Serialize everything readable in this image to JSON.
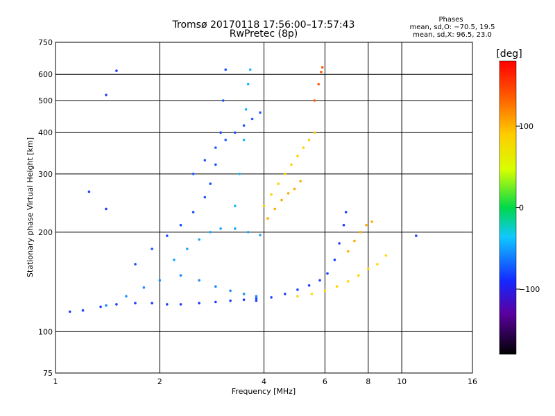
{
  "title": {
    "line1": "Tromsø 20170118 17:56:00–17:57:43",
    "line2": "RwPretec (8p)"
  },
  "stats": {
    "heading": "Phases",
    "line_o": "mean, sd,O: −70.5, 19.5",
    "line_x": "mean, sd,X:  96.5, 23.0"
  },
  "chart_data": {
    "type": "scatter",
    "title": "Tromsø 20170118 17:56:00–17:57:43",
    "subtitle": "RwPretec (8p)",
    "xlabel": "Frequency [MHz]",
    "ylabel": "Stationary phase Virtual Height [km]",
    "xscale": "log",
    "yscale": "log",
    "xlim": [
      1,
      16
    ],
    "ylim": [
      75,
      750
    ],
    "x_ticks": [
      1,
      2,
      4,
      6,
      8,
      10,
      16
    ],
    "x_tick_labels": [
      "1",
      "2",
      "4",
      "6",
      "8",
      "10",
      "16"
    ],
    "y_ticks": [
      75,
      100,
      200,
      300,
      400,
      500,
      600,
      750
    ],
    "y_tick_labels": [
      "75",
      "100",
      "200",
      "300",
      "400",
      "500",
      "600",
      "750"
    ],
    "grid": true,
    "colorbar": {
      "label": "[deg]",
      "range": [
        -180,
        180
      ],
      "ticks": [
        100,
        0,
        -100
      ],
      "tick_labels": [
        "100",
        "0",
        "−100"
      ],
      "colormap": "rainbow"
    },
    "series": [
      {
        "phase_deg": -100,
        "color": "#1b3fff",
        "points": [
          [
            1.1,
            115
          ],
          [
            1.2,
            116
          ],
          [
            1.35,
            119
          ],
          [
            1.5,
            121
          ],
          [
            1.7,
            122
          ],
          [
            1.9,
            122
          ],
          [
            2.1,
            121
          ],
          [
            2.3,
            121
          ],
          [
            2.6,
            122
          ],
          [
            2.9,
            123
          ],
          [
            3.2,
            124
          ],
          [
            3.5,
            125
          ],
          [
            3.8,
            126
          ]
        ]
      },
      {
        "phase_deg": -70,
        "color": "#1a8cff",
        "points": [
          [
            1.4,
            120
          ],
          [
            1.6,
            128
          ],
          [
            1.8,
            136
          ],
          [
            2.0,
            143
          ],
          [
            2.3,
            148
          ],
          [
            2.6,
            143
          ],
          [
            2.9,
            137
          ],
          [
            3.2,
            133
          ],
          [
            3.5,
            130
          ],
          [
            3.8,
            128
          ]
        ]
      },
      {
        "phase_deg": -90,
        "color": "#1750ff",
        "points": [
          [
            1.7,
            160
          ],
          [
            1.9,
            178
          ],
          [
            2.1,
            195
          ],
          [
            2.3,
            210
          ],
          [
            2.5,
            230
          ],
          [
            2.7,
            255
          ],
          [
            2.8,
            280
          ],
          [
            2.9,
            320
          ],
          [
            3.0,
            400
          ],
          [
            3.05,
            500
          ],
          [
            3.1,
            620
          ]
        ]
      },
      {
        "phase_deg": -60,
        "color": "#19a6ff",
        "points": [
          [
            2.2,
            165
          ],
          [
            2.4,
            178
          ],
          [
            2.6,
            190
          ],
          [
            2.8,
            200
          ],
          [
            3.0,
            205
          ],
          [
            3.3,
            205
          ],
          [
            3.6,
            200
          ],
          [
            3.9,
            196
          ]
        ]
      },
      {
        "phase_deg": -85,
        "color": "#1d5aff",
        "points": [
          [
            2.5,
            300
          ],
          [
            2.7,
            330
          ],
          [
            2.9,
            360
          ],
          [
            3.1,
            380
          ],
          [
            3.3,
            400
          ],
          [
            3.5,
            420
          ],
          [
            3.7,
            440
          ],
          [
            3.9,
            460
          ]
        ]
      },
      {
        "phase_deg": -65,
        "color": "#18b4ff",
        "points": [
          [
            3.3,
            240
          ],
          [
            3.4,
            300
          ],
          [
            3.5,
            380
          ],
          [
            3.55,
            470
          ],
          [
            3.6,
            560
          ],
          [
            3.65,
            620
          ]
        ]
      },
      {
        "phase_deg": 110,
        "color": "#ffd200",
        "points": [
          [
            4.0,
            240
          ],
          [
            4.2,
            260
          ],
          [
            4.4,
            280
          ],
          [
            4.6,
            300
          ],
          [
            4.8,
            320
          ],
          [
            5.0,
            340
          ],
          [
            5.2,
            360
          ],
          [
            5.4,
            380
          ],
          [
            5.6,
            400
          ]
        ]
      },
      {
        "phase_deg": 130,
        "color": "#ffaa00",
        "points": [
          [
            4.1,
            220
          ],
          [
            4.3,
            235
          ],
          [
            4.5,
            250
          ],
          [
            4.7,
            262
          ],
          [
            4.9,
            270
          ],
          [
            5.1,
            285
          ]
        ]
      },
      {
        "phase_deg": 150,
        "color": "#ff5a00",
        "points": [
          [
            5.6,
            500
          ],
          [
            5.75,
            560
          ],
          [
            5.85,
            610
          ],
          [
            5.9,
            630
          ]
        ]
      },
      {
        "phase_deg": -95,
        "color": "#1f40ff",
        "points": [
          [
            3.8,
            124
          ],
          [
            4.2,
            127
          ],
          [
            4.6,
            130
          ],
          [
            5.0,
            134
          ],
          [
            5.4,
            138
          ],
          [
            5.8,
            143
          ],
          [
            6.1,
            150
          ],
          [
            6.4,
            165
          ],
          [
            6.6,
            185
          ],
          [
            6.8,
            210
          ],
          [
            6.9,
            230
          ]
        ]
      },
      {
        "phase_deg": 105,
        "color": "#ffd800",
        "points": [
          [
            5.0,
            128
          ],
          [
            5.5,
            130
          ],
          [
            6.0,
            133
          ],
          [
            6.5,
            137
          ],
          [
            7.0,
            142
          ],
          [
            7.5,
            148
          ],
          [
            8.0,
            155
          ],
          [
            8.5,
            160
          ],
          [
            9.0,
            170
          ]
        ]
      },
      {
        "phase_deg": 125,
        "color": "#ffae00",
        "points": [
          [
            7.0,
            175
          ],
          [
            7.3,
            188
          ],
          [
            7.6,
            200
          ],
          [
            7.9,
            210
          ],
          [
            8.2,
            215
          ]
        ]
      },
      {
        "phase_deg": -95,
        "color": "#2040ff",
        "points": [
          [
            1.25,
            265
          ],
          [
            1.4,
            235
          ],
          [
            1.4,
            520
          ],
          [
            1.5,
            615
          ],
          [
            11,
            195
          ]
        ]
      }
    ]
  }
}
